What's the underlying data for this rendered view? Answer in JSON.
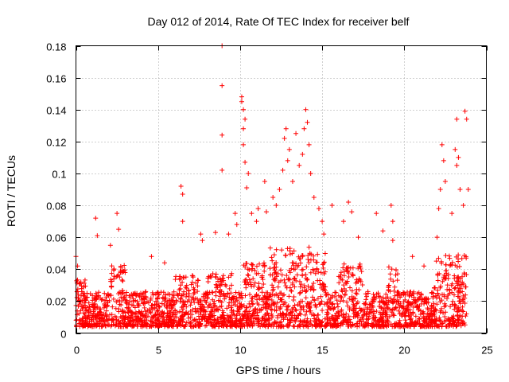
{
  "chart_data": {
    "type": "scatter",
    "title": "Day 012 of 2014, Rate Of TEC Index for receiver belf",
    "xlabel": "GPS time / hours",
    "ylabel": "ROTI / TECUs",
    "xlim": [
      0,
      25
    ],
    "ylim": [
      0,
      0.18
    ],
    "xticks": [
      0,
      5,
      10,
      15,
      20,
      25
    ],
    "xtick_labels": [
      "0",
      "5",
      "10",
      "15",
      "20",
      "25"
    ],
    "yticks": [
      0,
      0.02,
      0.04,
      0.06,
      0.08,
      0.1,
      0.12,
      0.14,
      0.16,
      0.18
    ],
    "ytick_labels": [
      "0",
      "0.02",
      "0.04",
      "0.06",
      "0.08",
      "0.1",
      "0.12",
      "0.14",
      "0.16",
      "0.18"
    ],
    "grid": true,
    "marker": "+",
    "color": "#ff0000",
    "series": [
      {
        "name": "ROTI",
        "peaks": [
          [
            0.0,
            0.048
          ],
          [
            0.1,
            0.042
          ],
          [
            0.3,
            0.032
          ],
          [
            1.2,
            0.072
          ],
          [
            1.3,
            0.061
          ],
          [
            2.1,
            0.055
          ],
          [
            2.5,
            0.075
          ],
          [
            2.6,
            0.065
          ],
          [
            4.6,
            0.048
          ],
          [
            5.4,
            0.044
          ],
          [
            6.4,
            0.092
          ],
          [
            6.5,
            0.087
          ],
          [
            6.5,
            0.07
          ],
          [
            7.6,
            0.062
          ],
          [
            7.7,
            0.058
          ],
          [
            8.5,
            0.063
          ],
          [
            8.9,
            0.18
          ],
          [
            8.9,
            0.155
          ],
          [
            8.9,
            0.124
          ],
          [
            8.9,
            0.102
          ],
          [
            9.3,
            0.062
          ],
          [
            9.7,
            0.075
          ],
          [
            9.8,
            0.068
          ],
          [
            10.1,
            0.148
          ],
          [
            10.1,
            0.145
          ],
          [
            10.2,
            0.14
          ],
          [
            10.3,
            0.134
          ],
          [
            10.2,
            0.128
          ],
          [
            10.2,
            0.118
          ],
          [
            10.3,
            0.107
          ],
          [
            10.5,
            0.1
          ],
          [
            10.4,
            0.091
          ],
          [
            10.7,
            0.075
          ],
          [
            11.0,
            0.07
          ],
          [
            11.1,
            0.078
          ],
          [
            11.5,
            0.095
          ],
          [
            11.6,
            0.076
          ],
          [
            12.0,
            0.085
          ],
          [
            12.2,
            0.08
          ],
          [
            12.4,
            0.09
          ],
          [
            12.6,
            0.102
          ],
          [
            12.7,
            0.122
          ],
          [
            12.8,
            0.128
          ],
          [
            12.9,
            0.108
          ],
          [
            13.0,
            0.115
          ],
          [
            13.2,
            0.095
          ],
          [
            13.4,
            0.125
          ],
          [
            13.6,
            0.105
          ],
          [
            13.8,
            0.112
          ],
          [
            13.9,
            0.128
          ],
          [
            14.0,
            0.14
          ],
          [
            14.1,
            0.132
          ],
          [
            14.2,
            0.118
          ],
          [
            14.3,
            0.1
          ],
          [
            14.5,
            0.085
          ],
          [
            14.8,
            0.078
          ],
          [
            15.0,
            0.07
          ],
          [
            15.1,
            0.062
          ],
          [
            15.6,
            0.08
          ],
          [
            16.3,
            0.07
          ],
          [
            16.6,
            0.082
          ],
          [
            16.8,
            0.076
          ],
          [
            17.2,
            0.06
          ],
          [
            18.3,
            0.075
          ],
          [
            18.7,
            0.064
          ],
          [
            19.2,
            0.08
          ],
          [
            19.3,
            0.07
          ],
          [
            19.3,
            0.058
          ],
          [
            20.5,
            0.048
          ],
          [
            21.2,
            0.042
          ],
          [
            22.0,
            0.06
          ],
          [
            22.1,
            0.078
          ],
          [
            22.2,
            0.09
          ],
          [
            22.3,
            0.118
          ],
          [
            22.4,
            0.108
          ],
          [
            22.5,
            0.095
          ],
          [
            22.9,
            0.075
          ],
          [
            23.1,
            0.115
          ],
          [
            23.2,
            0.105
          ],
          [
            23.2,
            0.134
          ],
          [
            23.3,
            0.11
          ],
          [
            23.4,
            0.09
          ],
          [
            23.6,
            0.08
          ],
          [
            23.7,
            0.139
          ],
          [
            23.8,
            0.134
          ],
          [
            23.9,
            0.09
          ]
        ]
      }
    ]
  }
}
